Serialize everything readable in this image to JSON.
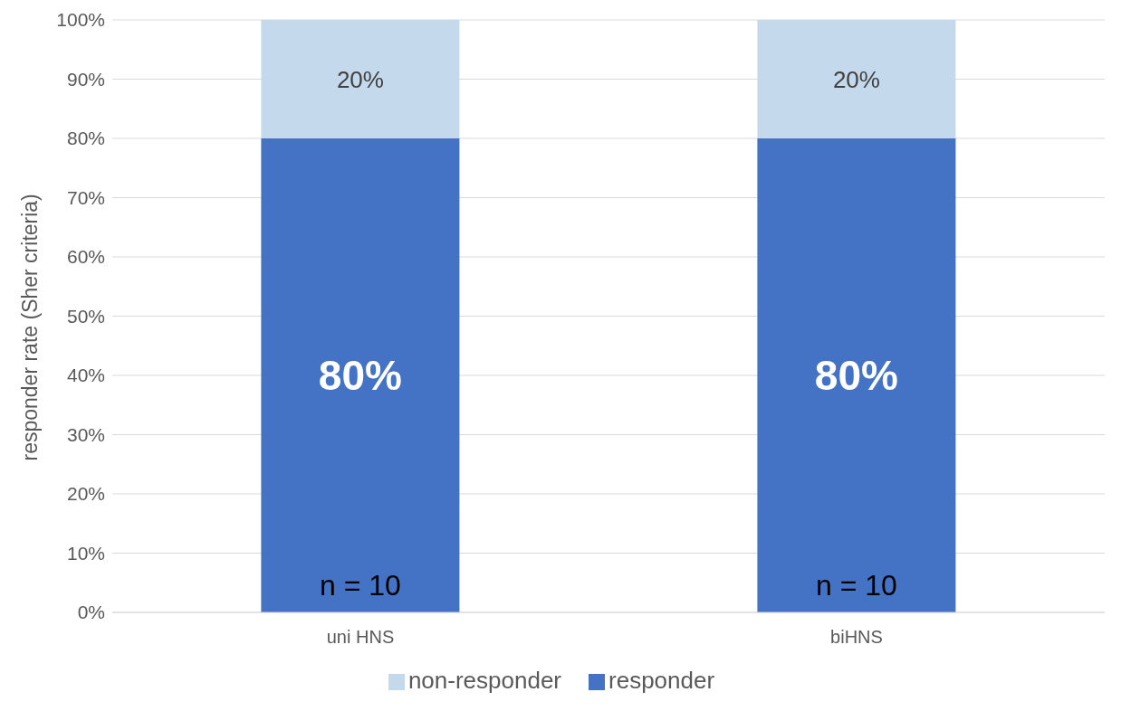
{
  "chart_data": {
    "type": "bar",
    "stacked": true,
    "ylabel": "responder rate (Sher criteria)",
    "categories": [
      "uni HNS",
      "biHNS"
    ],
    "series": [
      {
        "name": "responder",
        "color": "#4472c4",
        "values": [
          80,
          80
        ],
        "value_labels": [
          "80%",
          "80%"
        ]
      },
      {
        "name": "non-responder",
        "color": "#c5d9ed",
        "values": [
          20,
          20
        ],
        "value_labels": [
          "20%",
          "20%"
        ]
      }
    ],
    "ylim": [
      0,
      100
    ],
    "yticks": [
      {
        "value": 0,
        "label": "0%"
      },
      {
        "value": 10,
        "label": "10%"
      },
      {
        "value": 20,
        "label": "20%"
      },
      {
        "value": 30,
        "label": "30%"
      },
      {
        "value": 40,
        "label": "40%"
      },
      {
        "value": 50,
        "label": "50%"
      },
      {
        "value": 60,
        "label": "60%"
      },
      {
        "value": 70,
        "label": "70%"
      },
      {
        "value": 80,
        "label": "80%"
      },
      {
        "value": 90,
        "label": "90%"
      },
      {
        "value": 100,
        "label": "100%"
      }
    ],
    "annotations": [
      "n = 10",
      "n = 10"
    ],
    "grid": "y",
    "legend": "bottom"
  }
}
